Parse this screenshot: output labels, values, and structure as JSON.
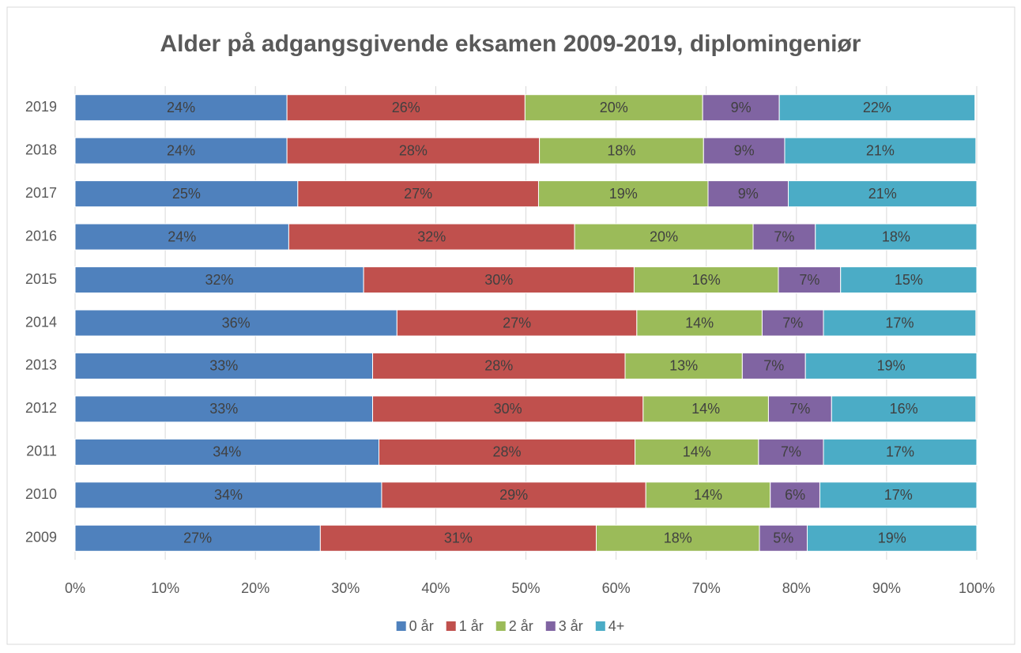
{
  "chart_data": {
    "type": "stacked_bar_horizontal",
    "title": "Alder på adgangsgivende eksamen 2009-2019, diplomingeniør",
    "categories": [
      "2009",
      "2010",
      "2011",
      "2012",
      "2013",
      "2014",
      "2015",
      "2016",
      "2017",
      "2018",
      "2019"
    ],
    "series": [
      {
        "name": "0 år",
        "color": "#4f81bd",
        "values": [
          27.2,
          34.0,
          33.7,
          33.0,
          33.0,
          35.7,
          32.0,
          23.7,
          24.7,
          23.5,
          23.5
        ],
        "value_labels": [
          "27%",
          "34%",
          "34%",
          "33%",
          "33%",
          "36%",
          "32%",
          "24%",
          "25%",
          "24%",
          "24%"
        ]
      },
      {
        "name": "1 år",
        "color": "#c0504d",
        "values": [
          30.6,
          29.3,
          28.4,
          30.0,
          28.0,
          26.6,
          30.0,
          31.7,
          26.7,
          28.0,
          26.4
        ],
        "value_labels": [
          "31%",
          "29%",
          "28%",
          "30%",
          "28%",
          "27%",
          "30%",
          "32%",
          "27%",
          "28%",
          "26%"
        ]
      },
      {
        "name": "2 år",
        "color": "#9bbb59",
        "values": [
          18.1,
          13.8,
          13.7,
          13.9,
          13.0,
          13.9,
          16.0,
          19.8,
          18.8,
          18.2,
          19.7
        ],
        "value_labels": [
          "18%",
          "14%",
          "14%",
          "14%",
          "13%",
          "14%",
          "16%",
          "20%",
          "19%",
          "18%",
          "20%"
        ]
      },
      {
        "name": "3 år",
        "color": "#8064a2",
        "values": [
          5.3,
          5.5,
          7.2,
          7.0,
          7.0,
          6.8,
          6.9,
          6.9,
          8.9,
          9.0,
          8.5
        ],
        "value_labels": [
          "5%",
          "6%",
          "7%",
          "7%",
          "7%",
          "7%",
          "7%",
          "7%",
          "9%",
          "9%",
          "9%"
        ]
      },
      {
        "name": "4+",
        "color": "#4bacc6",
        "values": [
          18.8,
          17.4,
          17.0,
          16.0,
          19.0,
          16.9,
          15.1,
          17.9,
          20.9,
          21.2,
          21.7
        ],
        "value_labels": [
          "19%",
          "17%",
          "17%",
          "16%",
          "19%",
          "17%",
          "15%",
          "18%",
          "21%",
          "21%",
          "22%"
        ]
      }
    ],
    "xlim": [
      0,
      100
    ],
    "xticks": [
      {
        "value": 0,
        "label": "0%"
      },
      {
        "value": 10,
        "label": "10%"
      },
      {
        "value": 20,
        "label": "20%"
      },
      {
        "value": 30,
        "label": "30%"
      },
      {
        "value": 40,
        "label": "40%"
      },
      {
        "value": 50,
        "label": "50%"
      },
      {
        "value": 60,
        "label": "60%"
      },
      {
        "value": 70,
        "label": "70%"
      },
      {
        "value": 80,
        "label": "80%"
      },
      {
        "value": 90,
        "label": "90%"
      },
      {
        "value": 100,
        "label": "100%"
      }
    ],
    "grid": true,
    "legend": "bottom"
  }
}
